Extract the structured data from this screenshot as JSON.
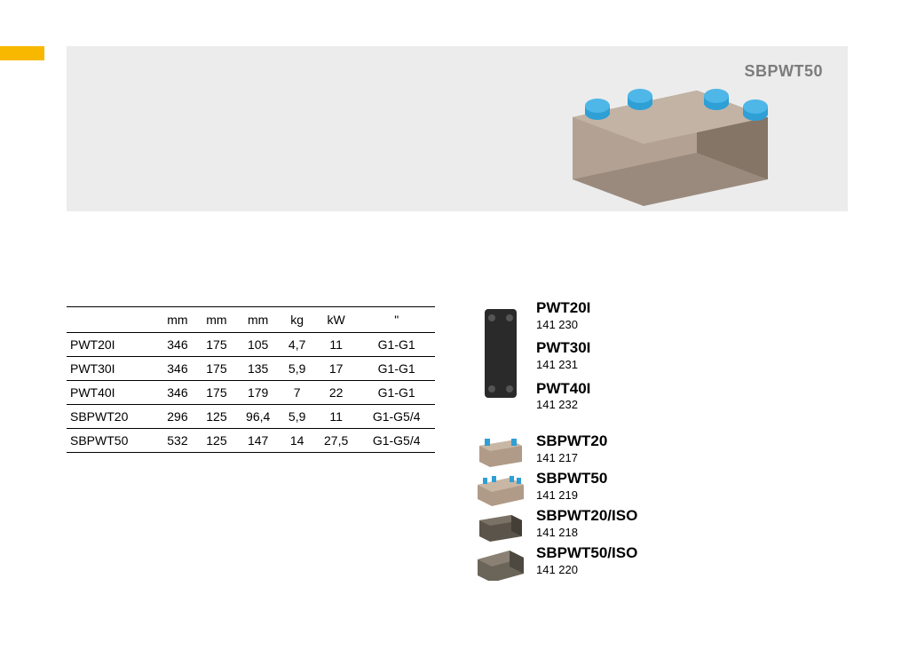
{
  "hero": {
    "label": "SBPWT50",
    "image_bg": "#a8978a",
    "cap_color": "#2ea0d6"
  },
  "accent_color": "#f8b800",
  "table": {
    "headers": [
      "",
      "mm",
      "mm",
      "mm",
      "kg",
      "kW",
      "\""
    ],
    "rows": [
      [
        "PWT20I",
        "346",
        "175",
        "105",
        "4,7",
        "11",
        "G1-G1"
      ],
      [
        "PWT30I",
        "346",
        "175",
        "135",
        "5,9",
        "17",
        "G1-G1"
      ],
      [
        "PWT40I",
        "346",
        "175",
        "179",
        "7",
        "22",
        "G1-G1"
      ],
      [
        "SBPWT20",
        "296",
        "125",
        "96,4",
        "5,9",
        "11",
        "G1-G5/4"
      ],
      [
        "SBPWT50",
        "532",
        "125",
        "147",
        "14",
        "27,5",
        "G1-G5/4"
      ]
    ]
  },
  "products_group_a": [
    {
      "name": "PWT20I",
      "code": "141 230"
    },
    {
      "name": "PWT30I",
      "code": "141 231"
    },
    {
      "name": "PWT40I",
      "code": "141 232"
    }
  ],
  "products_group_b": [
    {
      "name": "SBPWT20",
      "code": "141 217"
    },
    {
      "name": "SBPWT50",
      "code": "141 219"
    },
    {
      "name": "SBPWT20/ISO",
      "code": "141 218"
    },
    {
      "name": "SBPWT50/ISO",
      "code": "141 220"
    }
  ],
  "thumb_colors": {
    "pwt_body": "#2a2a2a",
    "sbpwt_body": "#b09a88",
    "sbpwt_iso_body": "#6b6459",
    "cap": "#2ea0d6"
  }
}
